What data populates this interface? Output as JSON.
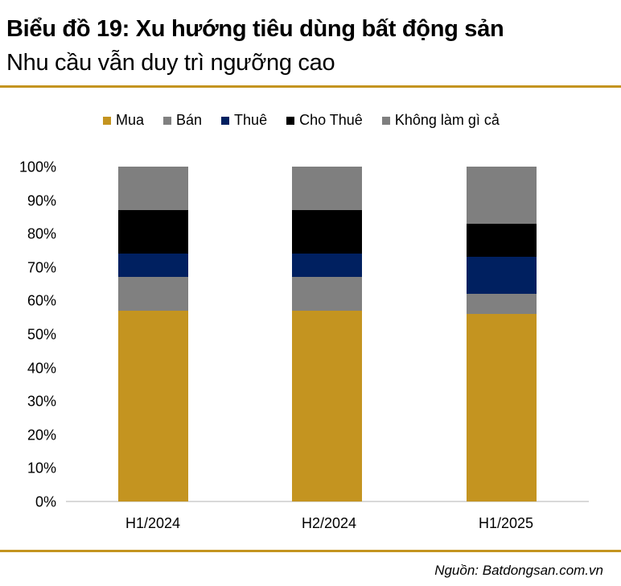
{
  "header": {
    "title": "Biểu đồ 19: Xu hướng tiêu dùng bất động sản",
    "subtitle": "Nhu cầu vẫn duy trì ngưỡng cao"
  },
  "legend": [
    {
      "label": "Mua",
      "color": "#c49420"
    },
    {
      "label": "Bán",
      "color": "#808080"
    },
    {
      "label": "Thuê",
      "color": "#002060"
    },
    {
      "label": "Cho Thuê",
      "color": "#000000"
    },
    {
      "label": "Không làm gì cả",
      "color": "#7f7f7f"
    }
  ],
  "y_ticks": [
    "100%",
    "90%",
    "80%",
    "70%",
    "60%",
    "50%",
    "40%",
    "30%",
    "20%",
    "10%",
    "0%"
  ],
  "x_labels": [
    "H1/2024",
    "H2/2024",
    "H1/2025"
  ],
  "footer": {
    "source": "Nguồn: Batdongsan.com.vn"
  },
  "colors": {
    "accent_rule": "#c49420",
    "mua": "#c49420",
    "ban": "#808080",
    "thue": "#002060",
    "cho_thue": "#000000",
    "khong": "#7f7f7f"
  },
  "chart_data": {
    "type": "bar",
    "stacked": true,
    "title": "Biểu đồ 19: Xu hướng tiêu dùng bất động sản",
    "subtitle": "Nhu cầu vẫn duy trì ngưỡng cao",
    "xlabel": "",
    "ylabel": "",
    "ylim": [
      0,
      100
    ],
    "y_tick_format": "percent",
    "grid": false,
    "legend_position": "top",
    "categories": [
      "H1/2024",
      "H2/2024",
      "H1/2025"
    ],
    "series": [
      {
        "name": "Mua",
        "color": "#c49420",
        "values": [
          57,
          57,
          56
        ]
      },
      {
        "name": "Bán",
        "color": "#808080",
        "values": [
          10,
          10,
          6
        ]
      },
      {
        "name": "Thuê",
        "color": "#002060",
        "values": [
          7,
          7,
          11
        ]
      },
      {
        "name": "Cho Thuê",
        "color": "#000000",
        "values": [
          13,
          13,
          10
        ]
      },
      {
        "name": "Không làm gì cả",
        "color": "#7f7f7f",
        "values": [
          13,
          13,
          17
        ]
      }
    ],
    "source": "Nguồn: Batdongsan.com.vn"
  }
}
